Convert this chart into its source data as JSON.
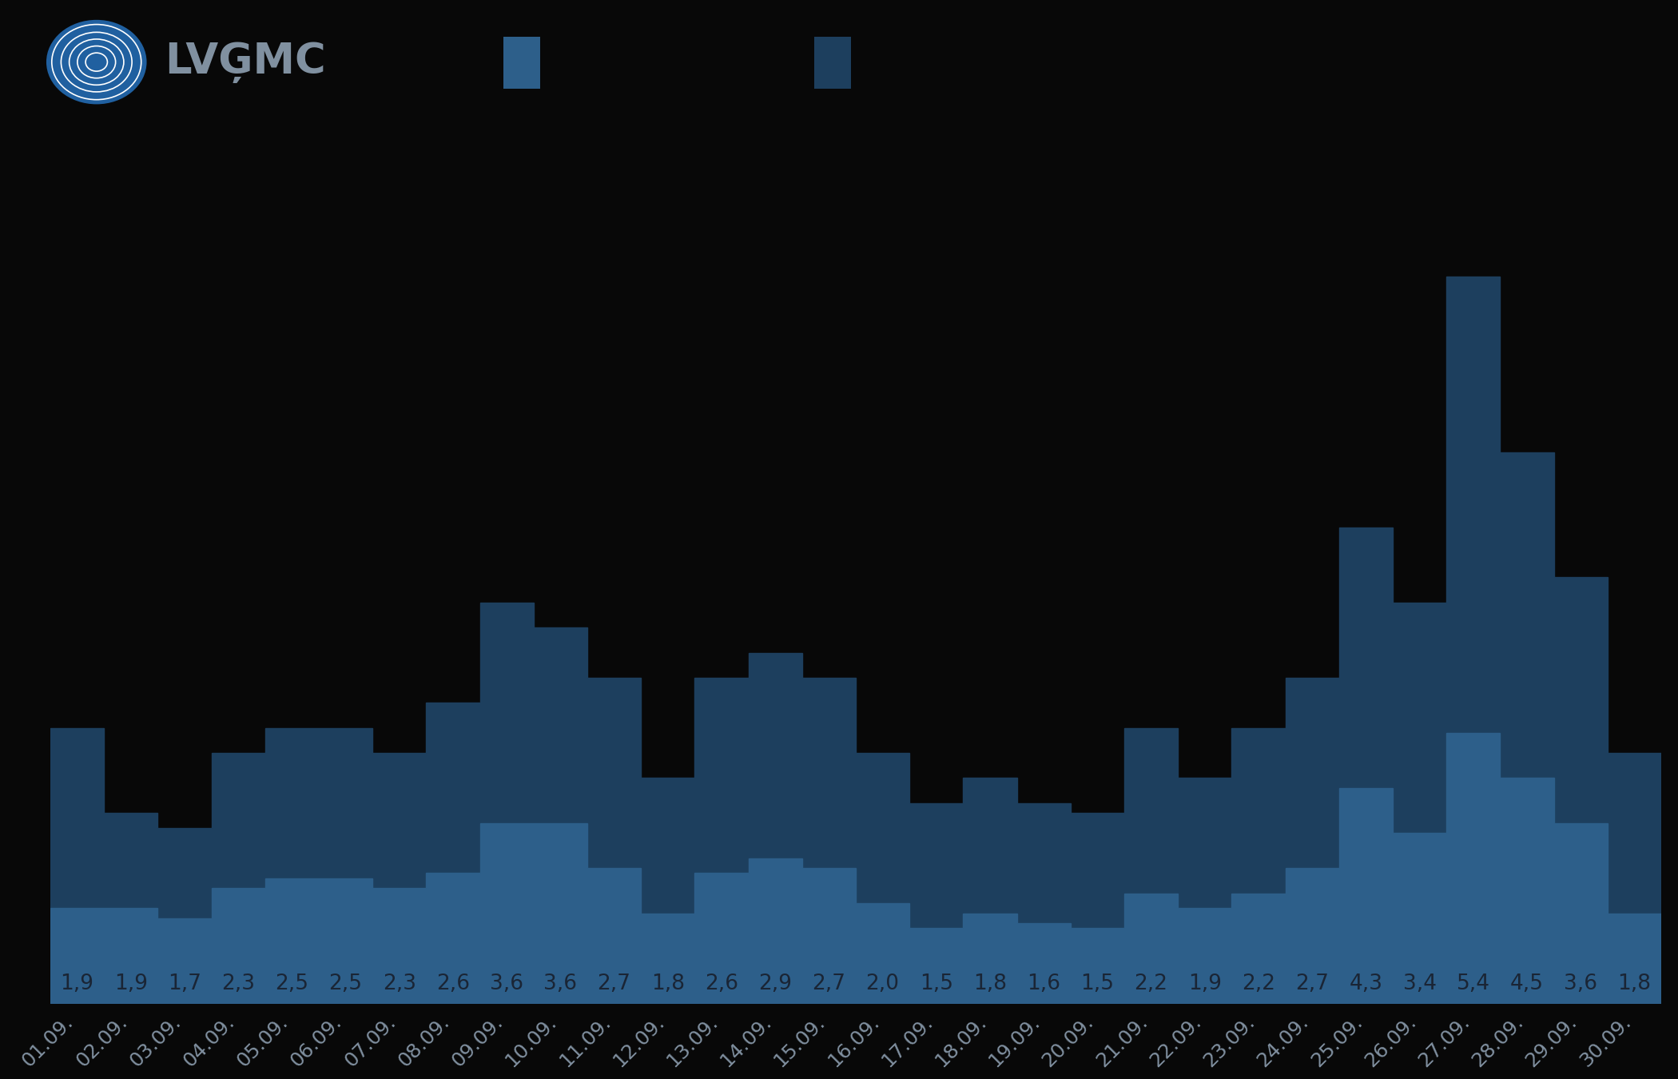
{
  "dates": [
    "01.09.",
    "02.09.",
    "03.09.",
    "04.09.",
    "05.09.",
    "06.09.",
    "07.09.",
    "08.09.",
    "09.09.",
    "10.09.",
    "11.09.",
    "12.09.",
    "13.09.",
    "14.09.",
    "15.09.",
    "16.09.",
    "17.09.",
    "18.09.",
    "19.09.",
    "20.09.",
    "21.09.",
    "22.09.",
    "23.09.",
    "24.09.",
    "25.09.",
    "26.09.",
    "27.09.",
    "28.09.",
    "29.09.",
    "30.09."
  ],
  "avg_values": [
    1.9,
    1.9,
    1.7,
    2.3,
    2.5,
    2.5,
    2.3,
    2.6,
    3.6,
    3.6,
    2.7,
    1.8,
    2.6,
    2.9,
    2.7,
    2.0,
    1.5,
    1.8,
    1.6,
    1.5,
    2.2,
    1.9,
    2.2,
    2.7,
    4.3,
    3.4,
    5.4,
    4.5,
    3.6,
    1.8
  ],
  "max_values": [
    5.5,
    3.8,
    3.5,
    5.0,
    5.5,
    5.5,
    5.0,
    6.0,
    8.0,
    7.5,
    6.5,
    4.5,
    6.5,
    7.0,
    6.5,
    5.0,
    4.0,
    4.5,
    4.0,
    3.8,
    5.5,
    4.5,
    5.5,
    6.5,
    9.5,
    8.0,
    14.5,
    11.0,
    8.5,
    5.0
  ],
  "avg_color": "#2d5f8a",
  "max_color": "#1d3f5e",
  "background_color": "#080808",
  "label_color": "#1a2535",
  "xticklabel_color": "#8090a0",
  "legend_sq1_color": "#2d5f8a",
  "legend_sq2_color": "#1d3f5e",
  "legend_text_color": "#8090a0",
  "logo_bg_color": "#2060a0",
  "logo_ring_color": "#ffffff",
  "lvgmc_text_color": "#8090a0"
}
